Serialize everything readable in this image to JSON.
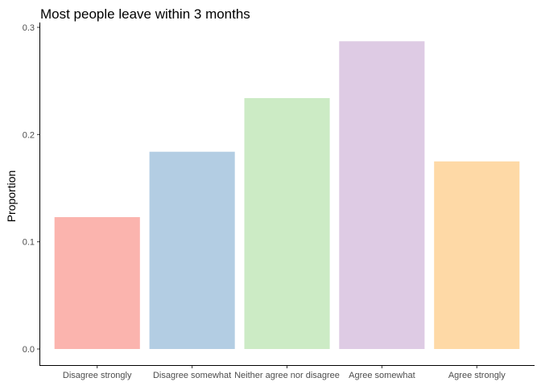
{
  "chart_data": {
    "type": "bar",
    "title": "Most people leave within 3 months",
    "xlabel": "",
    "ylabel": "Proportion",
    "categories": [
      "Disagree strongly",
      "Disagree somewhat",
      "Neither agree nor disagree",
      "Agree somewhat",
      "Agree strongly"
    ],
    "values": [
      0.123,
      0.184,
      0.234,
      0.287,
      0.175
    ],
    "colors": [
      "#FBB4AE",
      "#B3CDE3",
      "#CCEBC5",
      "#DECBE4",
      "#FED9A6"
    ],
    "yticks": [
      "0.0",
      "0.1",
      "0.2",
      "0.3"
    ],
    "ylim": [
      0,
      0.3
    ],
    "grid": false,
    "legend": "none"
  }
}
